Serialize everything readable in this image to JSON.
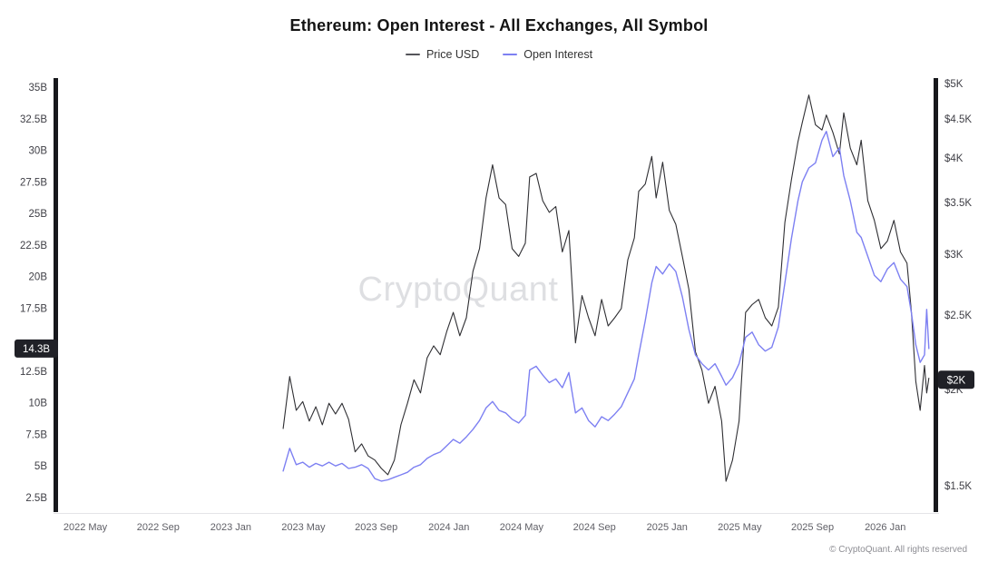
{
  "title": "Ethereum: Open Interest - All Exchanges, All Symbol",
  "legend": [
    {
      "label": "Price USD",
      "color": "#55555a"
    },
    {
      "label": "Open Interest",
      "color": "#7d80f2"
    }
  ],
  "watermark": "CryptoQuant",
  "footer": "© CryptoQuant. All rights reserved",
  "badges": {
    "left": {
      "label": "14.3B",
      "value": 14.3
    },
    "right": {
      "label": "$2K",
      "value": 2.06
    }
  },
  "chart_data": {
    "type": "line",
    "title": "Ethereum: Open Interest - All Exchanges, All Symbol",
    "x_unit": "decimal_year",
    "x_range": [
      2022.2,
      2026.23
    ],
    "grid": false,
    "legend_position": "top-center",
    "x_ticks": [
      {
        "label": "2022 May",
        "t": 2022.333
      },
      {
        "label": "2022 Sep",
        "t": 2022.667
      },
      {
        "label": "2023 Jan",
        "t": 2023.0
      },
      {
        "label": "2023 May",
        "t": 2023.333
      },
      {
        "label": "2023 Sep",
        "t": 2023.667
      },
      {
        "label": "2024 Jan",
        "t": 2024.0
      },
      {
        "label": "2024 May",
        "t": 2024.333
      },
      {
        "label": "2024 Sep",
        "t": 2024.667
      },
      {
        "label": "2025 Jan",
        "t": 2025.0
      },
      {
        "label": "2025 May",
        "t": 2025.333
      },
      {
        "label": "2025 Sep",
        "t": 2025.667
      },
      {
        "label": "2026 Jan",
        "t": 2026.0
      }
    ],
    "axes": {
      "left": {
        "title": "Open Interest",
        "unit": "B",
        "scale": "linear",
        "range": [
          2.5,
          35
        ],
        "ticks": [
          {
            "label": "35B",
            "value": 35
          },
          {
            "label": "32.5B",
            "value": 32.5
          },
          {
            "label": "30B",
            "value": 30
          },
          {
            "label": "27.5B",
            "value": 27.5
          },
          {
            "label": "25B",
            "value": 25
          },
          {
            "label": "22.5B",
            "value": 22.5
          },
          {
            "label": "20B",
            "value": 20
          },
          {
            "label": "17.5B",
            "value": 17.5
          },
          {
            "label": "12.5B",
            "value": 12.5
          },
          {
            "label": "10B",
            "value": 10
          },
          {
            "label": "7.5B",
            "value": 7.5
          },
          {
            "label": "5B",
            "value": 5
          },
          {
            "label": "2.5B",
            "value": 2.5
          }
        ]
      },
      "right": {
        "title": "Price USD",
        "unit": "$K",
        "scale": "log",
        "range": [
          1.5,
          5
        ],
        "ticks": [
          {
            "label": "$5K",
            "value": 5
          },
          {
            "label": "$4.5K",
            "value": 4.5
          },
          {
            "label": "$4K",
            "value": 4
          },
          {
            "label": "$3.5K",
            "value": 3.5
          },
          {
            "label": "$3K",
            "value": 3
          },
          {
            "label": "$2.5K",
            "value": 2.5
          },
          {
            "label": "$2K",
            "value": 2
          },
          {
            "label": "$1.5K",
            "value": 1.5
          }
        ]
      }
    },
    "series": [
      {
        "name": "Price USD",
        "axis": "right",
        "color": "#2f2f33",
        "width": 1.1,
        "points": [
          [
            2023.24,
            1.78
          ],
          [
            2023.27,
            2.08
          ],
          [
            2023.3,
            1.88
          ],
          [
            2023.33,
            1.93
          ],
          [
            2023.36,
            1.82
          ],
          [
            2023.39,
            1.9
          ],
          [
            2023.42,
            1.8
          ],
          [
            2023.45,
            1.92
          ],
          [
            2023.48,
            1.86
          ],
          [
            2023.51,
            1.92
          ],
          [
            2023.54,
            1.83
          ],
          [
            2023.57,
            1.66
          ],
          [
            2023.6,
            1.7
          ],
          [
            2023.63,
            1.64
          ],
          [
            2023.66,
            1.62
          ],
          [
            2023.69,
            1.58
          ],
          [
            2023.72,
            1.55
          ],
          [
            2023.75,
            1.62
          ],
          [
            2023.78,
            1.8
          ],
          [
            2023.81,
            1.92
          ],
          [
            2023.84,
            2.06
          ],
          [
            2023.87,
            1.98
          ],
          [
            2023.9,
            2.2
          ],
          [
            2023.93,
            2.28
          ],
          [
            2023.96,
            2.22
          ],
          [
            2023.99,
            2.38
          ],
          [
            2024.02,
            2.52
          ],
          [
            2024.05,
            2.35
          ],
          [
            2024.08,
            2.48
          ],
          [
            2024.11,
            2.85
          ],
          [
            2024.14,
            3.05
          ],
          [
            2024.17,
            3.55
          ],
          [
            2024.2,
            3.92
          ],
          [
            2024.23,
            3.55
          ],
          [
            2024.26,
            3.48
          ],
          [
            2024.29,
            3.05
          ],
          [
            2024.32,
            2.98
          ],
          [
            2024.35,
            3.1
          ],
          [
            2024.37,
            3.78
          ],
          [
            2024.4,
            3.82
          ],
          [
            2024.43,
            3.52
          ],
          [
            2024.46,
            3.4
          ],
          [
            2024.49,
            3.46
          ],
          [
            2024.52,
            3.02
          ],
          [
            2024.55,
            3.22
          ],
          [
            2024.58,
            2.3
          ],
          [
            2024.61,
            2.65
          ],
          [
            2024.64,
            2.48
          ],
          [
            2024.67,
            2.35
          ],
          [
            2024.7,
            2.62
          ],
          [
            2024.73,
            2.42
          ],
          [
            2024.76,
            2.48
          ],
          [
            2024.79,
            2.55
          ],
          [
            2024.82,
            2.95
          ],
          [
            2024.85,
            3.15
          ],
          [
            2024.87,
            3.62
          ],
          [
            2024.9,
            3.7
          ],
          [
            2024.93,
            4.02
          ],
          [
            2024.95,
            3.55
          ],
          [
            2024.98,
            3.95
          ],
          [
            2025.01,
            3.42
          ],
          [
            2025.04,
            3.28
          ],
          [
            2025.07,
            2.98
          ],
          [
            2025.1,
            2.7
          ],
          [
            2025.13,
            2.24
          ],
          [
            2025.16,
            2.12
          ],
          [
            2025.19,
            1.92
          ],
          [
            2025.22,
            2.02
          ],
          [
            2025.25,
            1.82
          ],
          [
            2025.27,
            1.52
          ],
          [
            2025.3,
            1.62
          ],
          [
            2025.33,
            1.82
          ],
          [
            2025.36,
            2.52
          ],
          [
            2025.39,
            2.58
          ],
          [
            2025.42,
            2.62
          ],
          [
            2025.45,
            2.48
          ],
          [
            2025.48,
            2.42
          ],
          [
            2025.51,
            2.56
          ],
          [
            2025.54,
            3.3
          ],
          [
            2025.57,
            3.75
          ],
          [
            2025.6,
            4.2
          ],
          [
            2025.62,
            4.45
          ],
          [
            2025.65,
            4.83
          ],
          [
            2025.68,
            4.42
          ],
          [
            2025.71,
            4.35
          ],
          [
            2025.73,
            4.55
          ],
          [
            2025.76,
            4.32
          ],
          [
            2025.79,
            4.05
          ],
          [
            2025.81,
            4.58
          ],
          [
            2025.84,
            4.12
          ],
          [
            2025.87,
            3.92
          ],
          [
            2025.89,
            4.22
          ],
          [
            2025.92,
            3.52
          ],
          [
            2025.95,
            3.32
          ],
          [
            2025.98,
            3.05
          ],
          [
            2026.01,
            3.12
          ],
          [
            2026.04,
            3.32
          ],
          [
            2026.07,
            3.02
          ],
          [
            2026.1,
            2.92
          ],
          [
            2026.12,
            2.52
          ],
          [
            2026.14,
            2.05
          ],
          [
            2026.16,
            1.88
          ],
          [
            2026.18,
            2.15
          ],
          [
            2026.19,
            1.98
          ],
          [
            2026.2,
            2.07
          ]
        ]
      },
      {
        "name": "Open Interest",
        "axis": "left",
        "color": "#7d80f2",
        "width": 1.4,
        "points": [
          [
            2023.24,
            4.6
          ],
          [
            2023.27,
            6.4
          ],
          [
            2023.3,
            5.1
          ],
          [
            2023.33,
            5.3
          ],
          [
            2023.36,
            4.9
          ],
          [
            2023.39,
            5.2
          ],
          [
            2023.42,
            5.0
          ],
          [
            2023.45,
            5.3
          ],
          [
            2023.48,
            5.0
          ],
          [
            2023.51,
            5.2
          ],
          [
            2023.54,
            4.8
          ],
          [
            2023.57,
            4.9
          ],
          [
            2023.6,
            5.1
          ],
          [
            2023.63,
            4.8
          ],
          [
            2023.66,
            4.0
          ],
          [
            2023.69,
            3.8
          ],
          [
            2023.72,
            3.9
          ],
          [
            2023.75,
            4.1
          ],
          [
            2023.78,
            4.3
          ],
          [
            2023.81,
            4.5
          ],
          [
            2023.84,
            4.9
          ],
          [
            2023.87,
            5.1
          ],
          [
            2023.9,
            5.6
          ],
          [
            2023.93,
            5.9
          ],
          [
            2023.96,
            6.1
          ],
          [
            2023.99,
            6.6
          ],
          [
            2024.02,
            7.1
          ],
          [
            2024.05,
            6.8
          ],
          [
            2024.08,
            7.3
          ],
          [
            2024.11,
            7.9
          ],
          [
            2024.14,
            8.6
          ],
          [
            2024.17,
            9.6
          ],
          [
            2024.2,
            10.1
          ],
          [
            2024.23,
            9.4
          ],
          [
            2024.26,
            9.2
          ],
          [
            2024.29,
            8.7
          ],
          [
            2024.32,
            8.4
          ],
          [
            2024.35,
            9.0
          ],
          [
            2024.37,
            12.6
          ],
          [
            2024.4,
            12.9
          ],
          [
            2024.43,
            12.2
          ],
          [
            2024.46,
            11.6
          ],
          [
            2024.49,
            11.9
          ],
          [
            2024.52,
            11.2
          ],
          [
            2024.55,
            12.4
          ],
          [
            2024.58,
            9.2
          ],
          [
            2024.61,
            9.6
          ],
          [
            2024.64,
            8.6
          ],
          [
            2024.67,
            8.1
          ],
          [
            2024.7,
            8.9
          ],
          [
            2024.73,
            8.6
          ],
          [
            2024.76,
            9.1
          ],
          [
            2024.79,
            9.7
          ],
          [
            2024.82,
            10.8
          ],
          [
            2024.85,
            11.9
          ],
          [
            2024.87,
            13.8
          ],
          [
            2024.9,
            16.5
          ],
          [
            2024.93,
            19.5
          ],
          [
            2024.95,
            20.8
          ],
          [
            2024.98,
            20.2
          ],
          [
            2025.01,
            21.0
          ],
          [
            2025.04,
            20.4
          ],
          [
            2025.07,
            18.4
          ],
          [
            2025.1,
            15.8
          ],
          [
            2025.13,
            13.8
          ],
          [
            2025.16,
            13.1
          ],
          [
            2025.19,
            12.6
          ],
          [
            2025.22,
            13.1
          ],
          [
            2025.25,
            12.1
          ],
          [
            2025.27,
            11.4
          ],
          [
            2025.3,
            12.0
          ],
          [
            2025.33,
            13.1
          ],
          [
            2025.36,
            15.2
          ],
          [
            2025.39,
            15.6
          ],
          [
            2025.42,
            14.6
          ],
          [
            2025.45,
            14.1
          ],
          [
            2025.48,
            14.4
          ],
          [
            2025.51,
            16.0
          ],
          [
            2025.54,
            19.5
          ],
          [
            2025.57,
            23.0
          ],
          [
            2025.6,
            26.0
          ],
          [
            2025.62,
            27.5
          ],
          [
            2025.65,
            28.6
          ],
          [
            2025.68,
            29.0
          ],
          [
            2025.71,
            30.8
          ],
          [
            2025.73,
            31.5
          ],
          [
            2025.76,
            29.5
          ],
          [
            2025.79,
            30.2
          ],
          [
            2025.81,
            28.0
          ],
          [
            2025.84,
            26.0
          ],
          [
            2025.87,
            23.5
          ],
          [
            2025.89,
            23.1
          ],
          [
            2025.92,
            21.6
          ],
          [
            2025.95,
            20.1
          ],
          [
            2025.98,
            19.6
          ],
          [
            2026.01,
            20.6
          ],
          [
            2026.04,
            21.1
          ],
          [
            2026.07,
            19.8
          ],
          [
            2026.1,
            19.2
          ],
          [
            2026.12,
            17.1
          ],
          [
            2026.14,
            14.6
          ],
          [
            2026.16,
            13.2
          ],
          [
            2026.18,
            13.8
          ],
          [
            2026.19,
            17.4
          ],
          [
            2026.2,
            14.3
          ]
        ]
      }
    ]
  }
}
